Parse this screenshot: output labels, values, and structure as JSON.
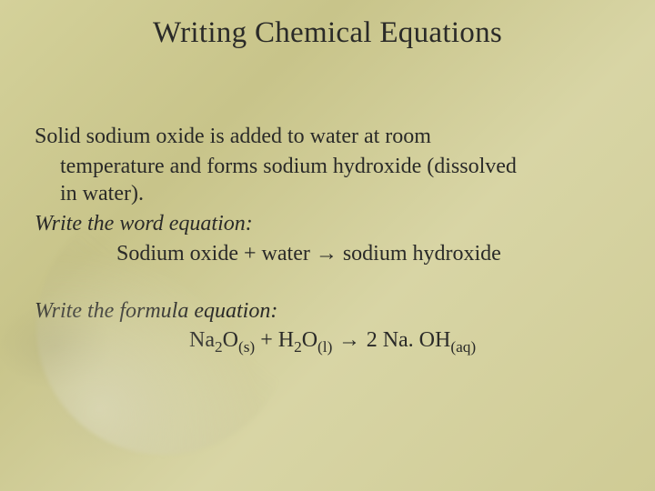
{
  "slide": {
    "background_colors": [
      "#d4d19a",
      "#c8c48a",
      "#d8d5a5",
      "#cfcb95"
    ],
    "text_color": "#2a2a28",
    "title": {
      "text": "Writing Chemical Equations",
      "fontsize": 33,
      "font_family": "Times New Roman",
      "font_weight": 400
    },
    "body_fontsize": 24,
    "line_height": 1.28,
    "paragraph1": {
      "line1": "Solid sodium oxide is added to water at room",
      "line2": "temperature and forms sodium hydroxide (dissolved",
      "line3": "in water)."
    },
    "instruction1": "Write the word equation:",
    "word_equation": "Sodium oxide + water → sodium hydroxide",
    "instruction2": "Write the formula equation:",
    "formula_equation": {
      "lhs1": "Na",
      "sub1": "2",
      "lhs2": "O",
      "state1": "(s)",
      "plus": " + H",
      "sub2": "2",
      "lhs3": "O",
      "state2": "(l)",
      "arrow": " → ",
      "rhs1": "2 Na. OH",
      "state3": "(aq)"
    }
  }
}
